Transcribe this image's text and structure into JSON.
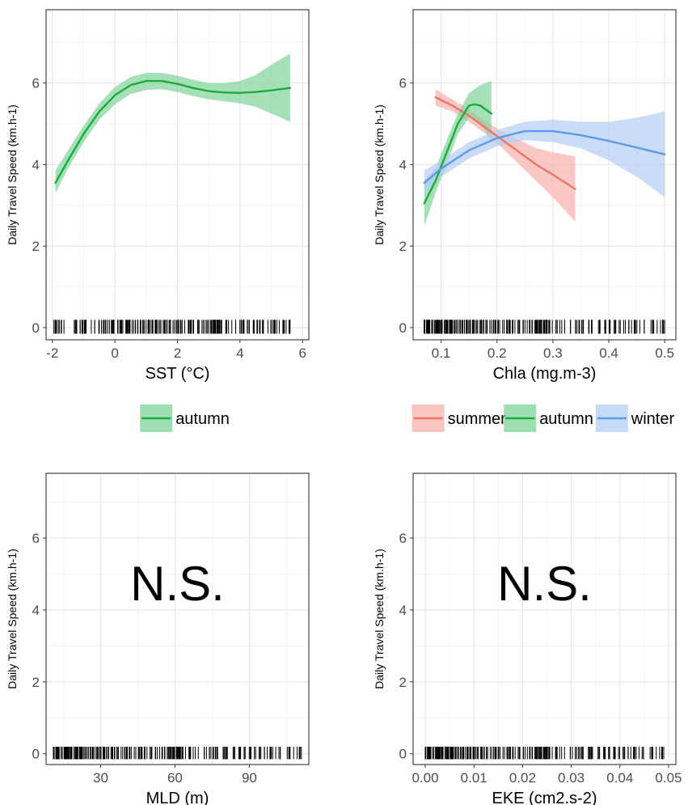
{
  "chart_data": [
    {
      "type": "line",
      "panel": "top-left",
      "xlabel": "SST (°C)",
      "ylabel": "Daily Travel Speed (km.h-1)",
      "xlim": [
        -2.2,
        6.2
      ],
      "ylim": [
        -0.3,
        7.8
      ],
      "xticks": [
        -2,
        0,
        2,
        4,
        6
      ],
      "xtick_labels": [
        "-2",
        "0",
        "2",
        "4",
        "6"
      ],
      "yticks": [
        0,
        2,
        4,
        6
      ],
      "ytick_labels": [
        "0",
        "2",
        "4",
        "6"
      ],
      "grid": true,
      "legend_position": "bottom",
      "series": [
        {
          "name": "autumn",
          "color": "#1dab3a",
          "fill": "#7fd39a",
          "x": [
            -1.9,
            -1.5,
            -1.0,
            -0.5,
            0.0,
            0.5,
            1.0,
            1.5,
            2.0,
            2.5,
            3.0,
            3.5,
            4.0,
            4.5,
            5.0,
            5.6
          ],
          "y": [
            3.55,
            4.1,
            4.75,
            5.3,
            5.7,
            5.95,
            6.05,
            6.05,
            5.98,
            5.88,
            5.8,
            5.77,
            5.76,
            5.78,
            5.82,
            5.88
          ],
          "lower": [
            3.3,
            3.9,
            4.55,
            5.1,
            5.48,
            5.73,
            5.83,
            5.85,
            5.78,
            5.68,
            5.6,
            5.55,
            5.5,
            5.42,
            5.25,
            5.05
          ],
          "upper": [
            3.85,
            4.35,
            4.95,
            5.5,
            5.9,
            6.15,
            6.25,
            6.25,
            6.18,
            6.08,
            6.0,
            6.0,
            6.05,
            6.2,
            6.45,
            6.72
          ]
        }
      ],
      "rug": {
        "start": -1.95,
        "end": 5.6,
        "count": 220,
        "shape": "uniform"
      }
    },
    {
      "type": "line",
      "panel": "top-right",
      "xlabel": "Chla (mg.m-3)",
      "ylabel": "Daily Travel Speed (km.h-1)",
      "xlim": [
        0.05,
        0.52
      ],
      "ylim": [
        -0.3,
        7.8
      ],
      "xticks": [
        0.1,
        0.2,
        0.3,
        0.4,
        0.5
      ],
      "xtick_labels": [
        "0.1",
        "0.2",
        "0.3",
        "0.4",
        "0.5"
      ],
      "yticks": [
        0,
        2,
        4,
        6
      ],
      "ytick_labels": [
        "0",
        "2",
        "4",
        "6"
      ],
      "grid": true,
      "legend_position": "bottom",
      "series": [
        {
          "name": "summer",
          "color": "#f07468",
          "fill": "#f6b1ab",
          "x": [
            0.09,
            0.12,
            0.15,
            0.18,
            0.21,
            0.24,
            0.27,
            0.3,
            0.34
          ],
          "y": [
            5.65,
            5.45,
            5.2,
            4.9,
            4.6,
            4.3,
            4.0,
            3.75,
            3.4
          ],
          "lower": [
            5.45,
            5.3,
            5.05,
            4.75,
            4.4,
            4.0,
            3.6,
            3.2,
            2.6
          ],
          "upper": [
            5.85,
            5.6,
            5.35,
            5.05,
            4.8,
            4.6,
            4.4,
            4.3,
            4.2
          ]
        },
        {
          "name": "autumn",
          "color": "#1dab3a",
          "fill": "#7fd39a",
          "x": [
            0.07,
            0.09,
            0.11,
            0.13,
            0.15,
            0.16,
            0.17,
            0.18,
            0.19
          ],
          "y": [
            3.05,
            3.6,
            4.3,
            5.0,
            5.45,
            5.48,
            5.45,
            5.35,
            5.25
          ],
          "lower": [
            2.5,
            3.3,
            4.0,
            4.75,
            5.15,
            5.12,
            5.0,
            4.8,
            4.55
          ],
          "upper": [
            3.6,
            3.9,
            4.6,
            5.25,
            5.75,
            5.85,
            5.95,
            6.0,
            6.05
          ]
        },
        {
          "name": "winter",
          "color": "#5b9be8",
          "fill": "#b3cdf4",
          "x": [
            0.07,
            0.1,
            0.15,
            0.2,
            0.25,
            0.3,
            0.35,
            0.4,
            0.45,
            0.5
          ],
          "y": [
            3.55,
            3.9,
            4.35,
            4.65,
            4.82,
            4.82,
            4.72,
            4.58,
            4.42,
            4.25
          ],
          "lower": [
            3.25,
            3.7,
            4.15,
            4.45,
            4.6,
            4.55,
            4.4,
            4.1,
            3.7,
            3.2
          ],
          "upper": [
            3.85,
            4.1,
            4.55,
            4.85,
            5.05,
            5.1,
            5.05,
            5.05,
            5.15,
            5.3
          ]
        }
      ],
      "rug": {
        "start": 0.07,
        "end": 0.5,
        "count": 240,
        "shape": "dense-left"
      }
    },
    {
      "type": "scatter",
      "panel": "bottom-left",
      "xlabel": "MLD (m)",
      "ylabel": "Daily Travel Speed (km.h-1)",
      "xlim": [
        8,
        114
      ],
      "ylim": [
        -0.3,
        7.8
      ],
      "xticks": [
        30,
        60,
        90
      ],
      "xtick_labels": [
        "30",
        "60",
        "90"
      ],
      "yticks": [
        0,
        2,
        4,
        6
      ],
      "ytick_labels": [
        "0",
        "2",
        "4",
        "6"
      ],
      "grid": true,
      "annotation": "N.S.",
      "series": [],
      "rug": {
        "start": 11,
        "end": 111,
        "count": 260,
        "shape": "dense-left"
      }
    },
    {
      "type": "scatter",
      "panel": "bottom-right",
      "xlabel": "EKE (cm2.s-2)",
      "ylabel": "Daily Travel Speed (km.h-1)",
      "xlim": [
        -0.0025,
        0.0515
      ],
      "ylim": [
        -0.3,
        7.8
      ],
      "xticks": [
        0.0,
        0.01,
        0.02,
        0.03,
        0.04,
        0.05
      ],
      "xtick_labels": [
        "0.00",
        "0.01",
        "0.02",
        "0.03",
        "0.04",
        "0.05"
      ],
      "yticks": [
        0,
        2,
        4,
        6
      ],
      "ytick_labels": [
        "0",
        "2",
        "4",
        "6"
      ],
      "grid": true,
      "annotation": "N.S.",
      "series": [],
      "rug": {
        "start": 0.0,
        "end": 0.049,
        "count": 260,
        "shape": "dense-left"
      }
    }
  ]
}
